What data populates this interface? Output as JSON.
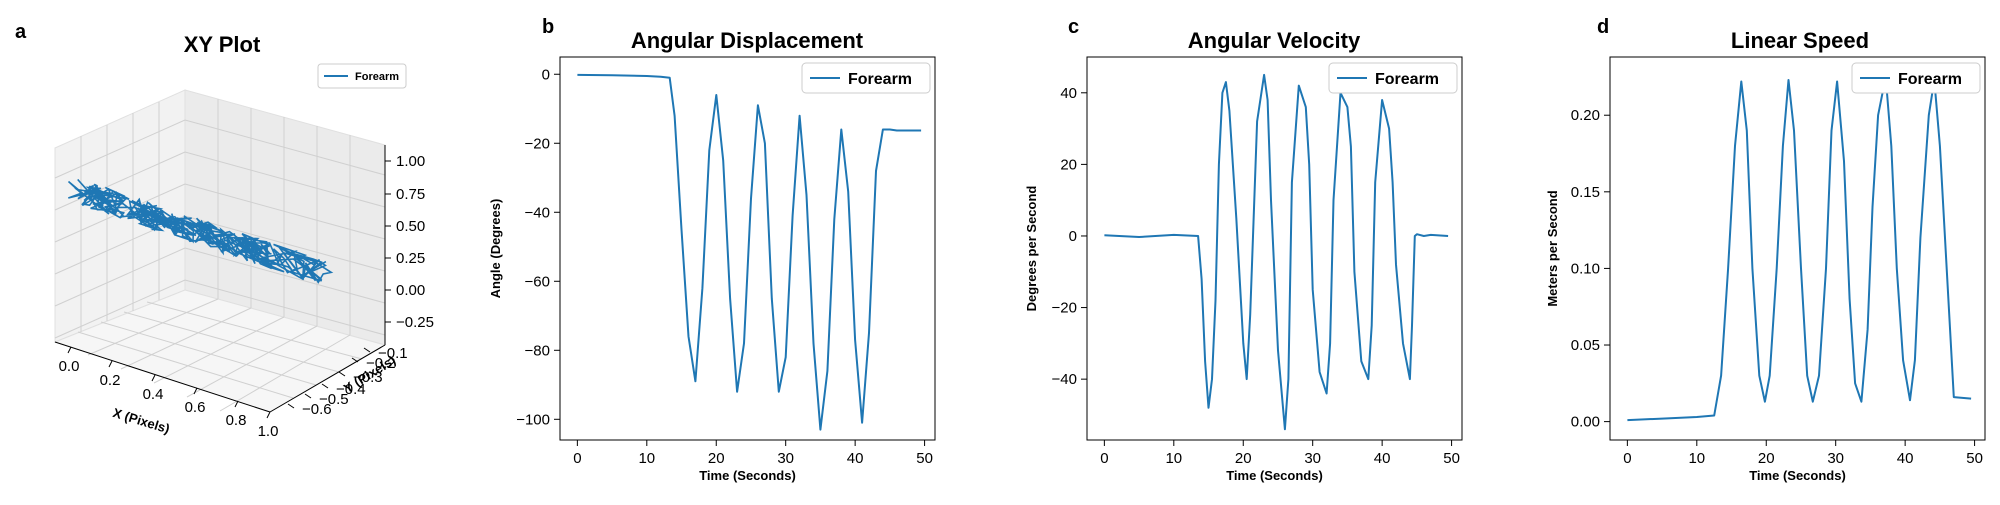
{
  "colors": {
    "series": "#1f77b4",
    "axis": "#000000",
    "pane": "#f2f2f2",
    "grid": "#d0d0d0"
  },
  "chart_data": [
    {
      "panel_label": "a",
      "type": "line3d",
      "title": "XY Plot",
      "xlabel": "X (Pixels)",
      "ylabel": "Y (Pixels)",
      "zlabel": "",
      "xlim": [
        -0.05,
        1.0
      ],
      "ylim": [
        -0.65,
        -0.05
      ],
      "zlim": [
        -0.35,
        1.1
      ],
      "x_ticks": [
        "0.0",
        "0.2",
        "0.4",
        "0.6",
        "0.8",
        "1.0"
      ],
      "y_ticks": [
        "-0.1",
        "-0.2",
        "-0.3",
        "-0.4",
        "-0.5",
        "-0.6"
      ],
      "z_ticks": [
        "1.00",
        "0.75",
        "0.50",
        "0.25",
        "0.00",
        "-0.25"
      ],
      "grid": true,
      "legend": {
        "entries": [
          "Forearm"
        ],
        "position": "upper-right"
      },
      "series": [
        {
          "name": "Forearm",
          "trajectory": "dense noisy band from x=0.0,y=-0.1 to x=1.0,y=-0.45 at z=0",
          "z_constant": 0
        }
      ]
    },
    {
      "panel_label": "b",
      "type": "line",
      "title": "Angular Displacement",
      "xlabel": "Time (Seconds)",
      "ylabel": "Angle (Degrees)",
      "xlim": [
        -2.5,
        51.5
      ],
      "ylim": [
        -106,
        5
      ],
      "x_ticks": [
        0,
        10,
        20,
        30,
        40,
        50
      ],
      "y_ticks": [
        0,
        -20,
        -40,
        -60,
        -80,
        -100
      ],
      "grid": false,
      "legend": {
        "entries": [
          "Forearm"
        ],
        "position": "upper-right"
      },
      "series": [
        {
          "name": "Forearm",
          "x": [
            0,
            5,
            10,
            12,
            13.3,
            14,
            15,
            16,
            17,
            18,
            19,
            20,
            21,
            22,
            23,
            24,
            25,
            26,
            27,
            28,
            29,
            30,
            31,
            32,
            33,
            34,
            35,
            36,
            37,
            38,
            39,
            40,
            41,
            42,
            43,
            44,
            45,
            46,
            47,
            49.5
          ],
          "y": [
            -0.2,
            -0.3,
            -0.5,
            -0.7,
            -1.0,
            -12,
            -45,
            -76,
            -89,
            -62,
            -22,
            -6,
            -25,
            -65,
            -92,
            -78,
            -36,
            -9,
            -20,
            -65,
            -92,
            -82,
            -41,
            -12,
            -35,
            -78,
            -103,
            -86,
            -42,
            -16,
            -34,
            -77,
            -101,
            -75,
            -28,
            -16,
            -16,
            -16.3,
            -16.3,
            -16.3
          ]
        }
      ]
    },
    {
      "panel_label": "c",
      "type": "line",
      "title": "Angular Velocity",
      "xlabel": "Time (Seconds)",
      "ylabel": "Degrees per Second",
      "xlim": [
        -2.5,
        51.5
      ],
      "ylim": [
        -57,
        50
      ],
      "x_ticks": [
        0,
        10,
        20,
        30,
        40,
        50
      ],
      "y_ticks": [
        40,
        20,
        0,
        -20,
        -40
      ],
      "grid": false,
      "legend": {
        "entries": [
          "Forearm"
        ],
        "position": "upper-right"
      },
      "series": [
        {
          "name": "Forearm",
          "x": [
            0,
            5,
            10,
            13.5,
            14,
            14.5,
            15,
            15.5,
            16,
            16.5,
            17,
            17.5,
            18,
            19,
            20,
            20.5,
            21,
            22,
            23,
            23.5,
            24,
            25,
            26,
            26.5,
            27,
            28,
            29,
            29.5,
            30,
            31,
            32,
            32.5,
            33,
            34,
            35,
            35.5,
            36,
            37,
            38,
            38.5,
            39,
            40,
            41,
            41.5,
            42,
            43,
            44,
            44.3,
            44.7,
            45,
            46,
            47,
            49.5
          ],
          "y": [
            0.2,
            -0.3,
            0.3,
            0,
            -12,
            -35,
            -48,
            -40,
            -18,
            20,
            40,
            43,
            35,
            5,
            -30,
            -40,
            -22,
            32,
            45,
            38,
            10,
            -32,
            -54,
            -40,
            15,
            42,
            36,
            20,
            -15,
            -38,
            -44,
            -30,
            10,
            40,
            36,
            25,
            -10,
            -35,
            -40,
            -25,
            15,
            38,
            30,
            15,
            -8,
            -30,
            -40,
            -25,
            0,
            0.5,
            0,
            0.3,
            0
          ]
        }
      ]
    },
    {
      "panel_label": "d",
      "type": "line",
      "title": "Linear Speed",
      "xlabel": "Time (Seconds)",
      "ylabel": "Meters per Second",
      "xlim": [
        -2.5,
        51.5
      ],
      "ylim": [
        -0.012,
        0.238
      ],
      "x_ticks": [
        0,
        10,
        20,
        30,
        40,
        50
      ],
      "y_ticks": [
        0.2,
        0.15,
        0.1,
        0.05,
        0.0
      ],
      "grid": false,
      "legend": {
        "entries": [
          "Forearm"
        ],
        "position": "upper-right"
      },
      "series": [
        {
          "name": "Forearm",
          "x": [
            0,
            5,
            10,
            12.5,
            13.5,
            14.5,
            15.5,
            16.4,
            17.2,
            18,
            19,
            19.8,
            20.5,
            21.5,
            22.4,
            23.2,
            24,
            25,
            25.9,
            26.7,
            27.6,
            28.6,
            29.4,
            30.2,
            31.2,
            32,
            32.8,
            33.7,
            34.6,
            35.3,
            36.1,
            37.2,
            38,
            38.8,
            39.7,
            40.7,
            41.4,
            42.2,
            43.4,
            44.2,
            45,
            47,
            49.5
          ],
          "y": [
            0.001,
            0.002,
            0.003,
            0.004,
            0.03,
            0.1,
            0.18,
            0.222,
            0.19,
            0.1,
            0.03,
            0.013,
            0.03,
            0.1,
            0.18,
            0.223,
            0.19,
            0.1,
            0.03,
            0.013,
            0.03,
            0.1,
            0.19,
            0.222,
            0.17,
            0.08,
            0.025,
            0.013,
            0.06,
            0.14,
            0.2,
            0.225,
            0.18,
            0.1,
            0.04,
            0.014,
            0.04,
            0.12,
            0.2,
            0.223,
            0.18,
            0.016,
            0.015
          ]
        }
      ]
    }
  ]
}
